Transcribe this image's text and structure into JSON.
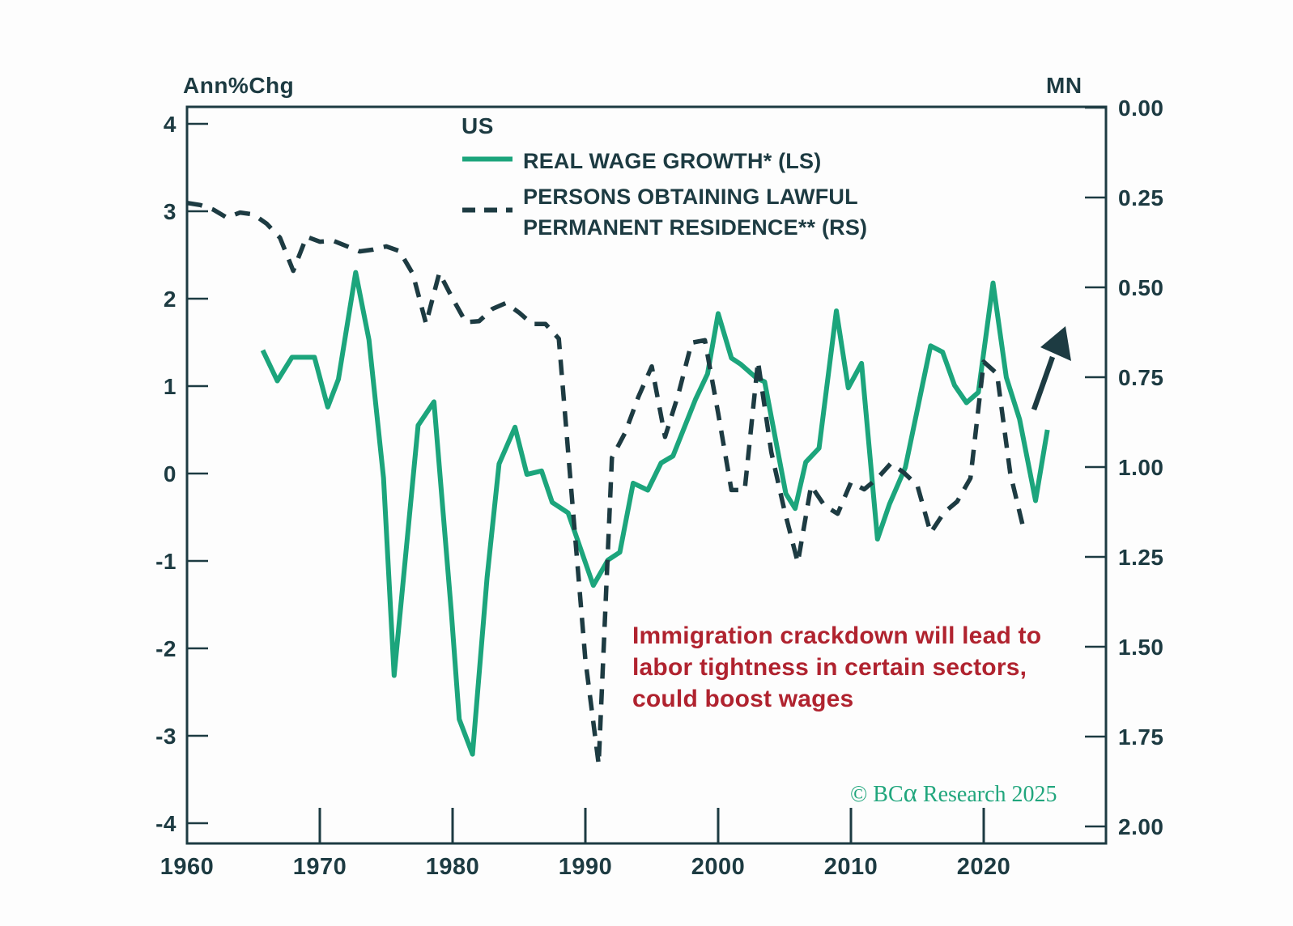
{
  "axes": {
    "left_title": "Ann%Chg",
    "right_title": "MN"
  },
  "legend": {
    "title": "US",
    "series1_label": "REAL WAGE GROWTH* (LS)",
    "series2_label_line1": "PERSONS OBTAINING LAWFUL",
    "series2_label_line2": "PERMANENT RESIDENCE** (RS)"
  },
  "annotation": {
    "color": "#b0232f",
    "lines": [
      "Immigration crackdown will lead to",
      "labor tightness in certain sectors,",
      "could boost wages"
    ]
  },
  "copyright": {
    "prefix": "© BC",
    "alpha": "α",
    "suffix": " Research 2025"
  },
  "chart_data": {
    "type": "line",
    "title": "US",
    "background": "#fdfdfd",
    "frame_color": "#1d3b42",
    "x_axis": {
      "ticks": [
        1960,
        1970,
        1980,
        1990,
        2000,
        2010,
        2020
      ],
      "range": [
        1960,
        2029.2
      ],
      "grid": false
    },
    "left_axis": {
      "label": "Ann%Chg",
      "ticks": [
        4,
        3,
        2,
        1,
        0,
        -1,
        -2,
        -3,
        -4
      ],
      "range": [
        -4.2,
        4.2
      ]
    },
    "right_axis": {
      "label": "MN",
      "tick_labels": [
        "0.00",
        "0.25",
        "0.50",
        "0.75",
        "1.00",
        "1.25",
        "1.50",
        "1.75",
        "2.00"
      ],
      "range": [
        0,
        2.05
      ],
      "inverted": true
    },
    "legend_position": "top-center-inside",
    "series": [
      {
        "name": "REAL WAGE GROWTH* (LS)",
        "axis": "left",
        "style": "solid",
        "color": "#1ca57c",
        "points": [
          [
            1965.7,
            1.41
          ],
          [
            1966.8,
            1.06
          ],
          [
            1967.9,
            1.33
          ],
          [
            1969.6,
            1.33
          ],
          [
            1970.6,
            0.76
          ],
          [
            1971.4,
            1.08
          ],
          [
            1972.7,
            2.3
          ],
          [
            1973.7,
            1.53
          ],
          [
            1974.8,
            -0.05
          ],
          [
            1975.6,
            -2.31
          ],
          [
            1977.4,
            0.55
          ],
          [
            1978.6,
            0.82
          ],
          [
            1979.9,
            -1.58
          ],
          [
            1980.5,
            -2.81
          ],
          [
            1981.5,
            -3.21
          ],
          [
            1982.6,
            -1.19
          ],
          [
            1983.5,
            0.11
          ],
          [
            1984.7,
            0.53
          ],
          [
            1985.6,
            -0.01
          ],
          [
            1986.7,
            0.03
          ],
          [
            1987.5,
            -0.33
          ],
          [
            1988.7,
            -0.45
          ],
          [
            1990.6,
            -1.28
          ],
          [
            1991.7,
            -0.99
          ],
          [
            1992.6,
            -0.9
          ],
          [
            1993.6,
            -0.11
          ],
          [
            1994.7,
            -0.19
          ],
          [
            1995.7,
            0.12
          ],
          [
            1996.6,
            0.2
          ],
          [
            1998.3,
            0.85
          ],
          [
            1999.2,
            1.14
          ],
          [
            2000.0,
            1.83
          ],
          [
            2001.0,
            1.32
          ],
          [
            2001.7,
            1.25
          ],
          [
            2002.9,
            1.09
          ],
          [
            2003.5,
            1.05
          ],
          [
            2005.1,
            -0.23
          ],
          [
            2005.8,
            -0.4
          ],
          [
            2006.6,
            0.13
          ],
          [
            2007.6,
            0.29
          ],
          [
            2008.9,
            1.86
          ],
          [
            2009.8,
            0.98
          ],
          [
            2010.8,
            1.26
          ],
          [
            2012.0,
            -0.75
          ],
          [
            2012.9,
            -0.35
          ],
          [
            2014.1,
            0.07
          ],
          [
            2016.0,
            1.46
          ],
          [
            2016.9,
            1.39
          ],
          [
            2017.8,
            1.01
          ],
          [
            2018.7,
            0.81
          ],
          [
            2019.6,
            0.93
          ],
          [
            2020.7,
            2.18
          ],
          [
            2021.7,
            1.1
          ],
          [
            2022.7,
            0.62
          ],
          [
            2023.9,
            -0.31
          ],
          [
            2024.8,
            0.5
          ]
        ]
      },
      {
        "name": "PERSONS OBTAINING LAWFUL PERMANENT RESIDENCE** (RS)",
        "axis": "right",
        "style": "dashed",
        "color": "#1d3b42",
        "points": [
          [
            1960,
            0.265
          ],
          [
            1961,
            0.271
          ],
          [
            1962,
            0.284
          ],
          [
            1963,
            0.306
          ],
          [
            1964,
            0.292
          ],
          [
            1965,
            0.297
          ],
          [
            1966,
            0.323
          ],
          [
            1967,
            0.362
          ],
          [
            1968,
            0.454
          ],
          [
            1969,
            0.359
          ],
          [
            1970,
            0.373
          ],
          [
            1971,
            0.37
          ],
          [
            1972,
            0.385
          ],
          [
            1973,
            0.4
          ],
          [
            1974,
            0.395
          ],
          [
            1975,
            0.386
          ],
          [
            1976,
            0.399
          ],
          [
            1977,
            0.462
          ],
          [
            1978,
            0.601
          ],
          [
            1979,
            0.46
          ],
          [
            1980,
            0.531
          ],
          [
            1981,
            0.597
          ],
          [
            1982,
            0.594
          ],
          [
            1983,
            0.56
          ],
          [
            1984,
            0.544
          ],
          [
            1985,
            0.57
          ],
          [
            1986,
            0.602
          ],
          [
            1987,
            0.602
          ],
          [
            1988,
            0.643
          ],
          [
            1989,
            1.091
          ],
          [
            1990,
            1.536
          ],
          [
            1991,
            1.827
          ],
          [
            1992,
            0.974
          ],
          [
            1993,
            0.904
          ],
          [
            1994,
            0.804
          ],
          [
            1995,
            0.72
          ],
          [
            1996,
            0.916
          ],
          [
            1997,
            0.798
          ],
          [
            1998,
            0.654
          ],
          [
            1999,
            0.647
          ],
          [
            2000,
            0.85
          ],
          [
            2001,
            1.064
          ],
          [
            2002,
            1.064
          ],
          [
            2003,
            0.706
          ],
          [
            2004,
            0.958
          ],
          [
            2005,
            1.122
          ],
          [
            2006,
            1.266
          ],
          [
            2007,
            1.052
          ],
          [
            2008,
            1.107
          ],
          [
            2009,
            1.13
          ],
          [
            2010,
            1.043
          ],
          [
            2011,
            1.062
          ],
          [
            2012,
            1.031
          ],
          [
            2013,
            0.99
          ],
          [
            2014,
            1.016
          ],
          [
            2015,
            1.051
          ],
          [
            2016,
            1.183
          ],
          [
            2017,
            1.127
          ],
          [
            2018,
            1.096
          ],
          [
            2019,
            1.031
          ],
          [
            2020,
            0.707
          ],
          [
            2021,
            0.74
          ],
          [
            2022,
            1.018
          ],
          [
            2023,
            1.172
          ]
        ]
      }
    ],
    "annotations": [
      {
        "type": "text",
        "text": "Immigration crackdown will lead to labor tightness in certain sectors, could boost wages",
        "color": "#b0232f"
      },
      {
        "type": "arrow",
        "direction": "up-right",
        "color": "#1d3b42",
        "shaft": [
          [
            1277,
            506
          ],
          [
            1300,
            441
          ]
        ],
        "head": [
          [
            1316,
            403
          ],
          [
            1285,
            429
          ],
          [
            1323,
            446
          ]
        ]
      }
    ],
    "copyright": "© BCα Research 2025"
  }
}
